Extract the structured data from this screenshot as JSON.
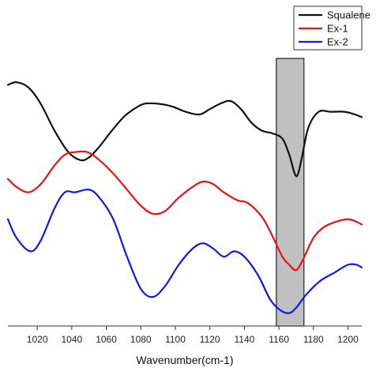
{
  "chart_data": {
    "type": "line",
    "xlabel": "Wavenumber(cm-1)",
    "xlim": [
      1003,
      1208
    ],
    "x_ticks": [
      1020,
      1040,
      1060,
      1080,
      1100,
      1120,
      1140,
      1160,
      1180,
      1200
    ],
    "y_ticks_shown": false,
    "grid": false,
    "legend_position": "top-right",
    "highlight_band": {
      "x0": 1158.5,
      "x1": 1174.5,
      "fill": "#c0c0c0"
    },
    "series": [
      {
        "name": "Squalene",
        "color": "#111111",
        "x": [
          1003,
          1008,
          1015,
          1022,
          1030,
          1038,
          1045,
          1050,
          1056,
          1062,
          1070,
          1076,
          1082,
          1090,
          1098,
          1106,
          1114,
          1120,
          1126,
          1132,
          1138,
          1144,
          1150,
          1156,
          1162,
          1166,
          1170,
          1173,
          1177,
          1183,
          1190,
          1198,
          1204,
          1208
        ],
        "y": [
          0.86,
          0.87,
          0.85,
          0.79,
          0.69,
          0.61,
          0.58,
          0.59,
          0.63,
          0.68,
          0.74,
          0.77,
          0.79,
          0.79,
          0.78,
          0.76,
          0.75,
          0.77,
          0.79,
          0.8,
          0.77,
          0.72,
          0.69,
          0.68,
          0.66,
          0.6,
          0.52,
          0.58,
          0.7,
          0.76,
          0.76,
          0.76,
          0.75,
          0.74
        ]
      },
      {
        "name": "Ex-1",
        "color": "#ee1111",
        "x": [
          1003,
          1008,
          1015,
          1022,
          1030,
          1036,
          1042,
          1049,
          1056,
          1064,
          1072,
          1080,
          1087,
          1094,
          1102,
          1110,
          1116,
          1122,
          1128,
          1136,
          1142,
          1150,
          1156,
          1162,
          1166,
          1170,
          1174,
          1180,
          1186,
          1193,
          1200,
          1205,
          1208
        ],
        "y": [
          0.51,
          0.48,
          0.46,
          0.49,
          0.56,
          0.6,
          0.61,
          0.61,
          0.58,
          0.53,
          0.47,
          0.41,
          0.38,
          0.39,
          0.44,
          0.48,
          0.5,
          0.49,
          0.46,
          0.43,
          0.42,
          0.37,
          0.3,
          0.22,
          0.19,
          0.17,
          0.21,
          0.29,
          0.33,
          0.35,
          0.36,
          0.35,
          0.34
        ]
      },
      {
        "name": "Ex-2",
        "color": "#1515ee",
        "x": [
          1003,
          1008,
          1016,
          1022,
          1030,
          1036,
          1042,
          1050,
          1056,
          1064,
          1072,
          1080,
          1087,
          1094,
          1102,
          1110,
          1116,
          1122,
          1128,
          1134,
          1140,
          1148,
          1155,
          1161,
          1166,
          1170,
          1176,
          1184,
          1192,
          1200,
          1205,
          1208
        ],
        "y": [
          0.36,
          0.29,
          0.24,
          0.28,
          0.4,
          0.46,
          0.46,
          0.47,
          0.44,
          0.36,
          0.22,
          0.1,
          0.07,
          0.11,
          0.19,
          0.25,
          0.27,
          0.25,
          0.22,
          0.24,
          0.22,
          0.15,
          0.06,
          0.02,
          0.01,
          0.03,
          0.08,
          0.13,
          0.16,
          0.19,
          0.19,
          0.18
        ]
      }
    ]
  }
}
